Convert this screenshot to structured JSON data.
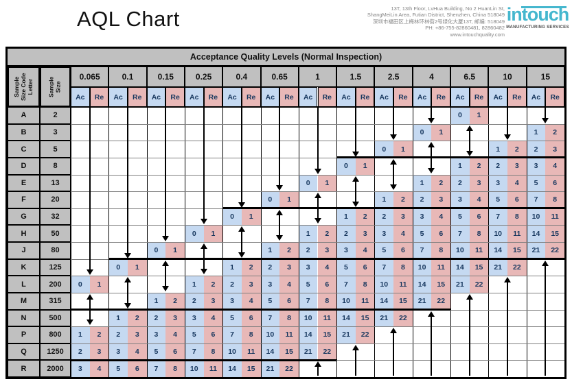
{
  "page": {
    "title": "AQL Chart",
    "company": {
      "address_lines": [
        "13T, 13th Floor, LvHua Building, No 2 HuanLin St,",
        "ShangMeiLin Area, Futian District, Shenzhen, China 518049",
        "深圳市福田区上梅林环林街2号绿化大厦13T, 邮编: 518049",
        "PH: +86-755-82860481, 82860482",
        "www.intouchquality.com"
      ],
      "logo_text": "intouch",
      "logo_tagline": "MANUFACTURING SERVICES",
      "logo_color": "#45b7ce"
    }
  },
  "table": {
    "header": "Acceptance Quality Levels  (Normal Inspection)",
    "row_header_labels": [
      "Sample Size Code Letter",
      "Sample Size"
    ],
    "aql_levels": [
      "0.065",
      "0.1",
      "0.15",
      "0.25",
      "0.4",
      "0.65",
      "1",
      "1.5",
      "2.5",
      "4",
      "6.5",
      "10",
      "15"
    ],
    "sub_headers": [
      "Ac",
      "Re"
    ],
    "colors": {
      "ac_bg": "#c5d9f1",
      "re_bg": "#e8b8b7",
      "header_bg": "#c0c0c0",
      "value_text": "#17375e"
    },
    "rows": [
      {
        "letter": "A",
        "size": "2",
        "cells": [
          null,
          null,
          null,
          null,
          null,
          null,
          null,
          null,
          null,
          null,
          [
            0,
            1
          ],
          null,
          null
        ]
      },
      {
        "letter": "B",
        "size": "3",
        "cells": [
          null,
          null,
          null,
          null,
          null,
          null,
          null,
          null,
          null,
          [
            0,
            1
          ],
          null,
          null,
          [
            1,
            2
          ]
        ]
      },
      {
        "letter": "C",
        "size": "5",
        "cells": [
          null,
          null,
          null,
          null,
          null,
          null,
          null,
          null,
          [
            0,
            1
          ],
          null,
          null,
          [
            1,
            2
          ],
          [
            2,
            3
          ]
        ]
      },
      {
        "letter": "D",
        "size": "8",
        "cells": [
          null,
          null,
          null,
          null,
          null,
          null,
          null,
          [
            0,
            1
          ],
          null,
          null,
          [
            1,
            2
          ],
          [
            2,
            3
          ],
          [
            3,
            4
          ]
        ]
      },
      {
        "letter": "E",
        "size": "13",
        "cells": [
          null,
          null,
          null,
          null,
          null,
          null,
          [
            0,
            1
          ],
          null,
          null,
          [
            1,
            2
          ],
          [
            2,
            3
          ],
          [
            3,
            4
          ],
          [
            5,
            6
          ]
        ]
      },
      {
        "letter": "F",
        "size": "20",
        "cells": [
          null,
          null,
          null,
          null,
          null,
          [
            0,
            1
          ],
          null,
          null,
          [
            1,
            2
          ],
          [
            2,
            3
          ],
          [
            3,
            4
          ],
          [
            5,
            6
          ],
          [
            7,
            8
          ]
        ]
      },
      {
        "letter": "G",
        "size": "32",
        "cells": [
          null,
          null,
          null,
          null,
          [
            0,
            1
          ],
          null,
          null,
          [
            1,
            2
          ],
          [
            2,
            3
          ],
          [
            3,
            4
          ],
          [
            5,
            6
          ],
          [
            7,
            8
          ],
          [
            10,
            11
          ]
        ]
      },
      {
        "letter": "H",
        "size": "50",
        "cells": [
          null,
          null,
          null,
          [
            0,
            1
          ],
          null,
          null,
          [
            1,
            2
          ],
          [
            2,
            3
          ],
          [
            3,
            4
          ],
          [
            5,
            6
          ],
          [
            7,
            8
          ],
          [
            10,
            11
          ],
          [
            14,
            15
          ]
        ]
      },
      {
        "letter": "J",
        "size": "80",
        "cells": [
          null,
          null,
          [
            0,
            1
          ],
          null,
          null,
          [
            1,
            2
          ],
          [
            2,
            3
          ],
          [
            3,
            4
          ],
          [
            5,
            6
          ],
          [
            7,
            8
          ],
          [
            10,
            11
          ],
          [
            14,
            15
          ],
          [
            21,
            22
          ]
        ]
      },
      {
        "letter": "K",
        "size": "125",
        "cells": [
          null,
          [
            0,
            1
          ],
          null,
          null,
          [
            1,
            2
          ],
          [
            2,
            3
          ],
          [
            3,
            4
          ],
          [
            5,
            6
          ],
          [
            7,
            8
          ],
          [
            10,
            11
          ],
          [
            14,
            15
          ],
          [
            21,
            22
          ],
          null
        ]
      },
      {
        "letter": "L",
        "size": "200",
        "cells": [
          [
            0,
            1
          ],
          null,
          null,
          [
            1,
            2
          ],
          [
            2,
            3
          ],
          [
            3,
            4
          ],
          [
            5,
            6
          ],
          [
            7,
            8
          ],
          [
            10,
            11
          ],
          [
            14,
            15
          ],
          [
            21,
            22
          ],
          null,
          null
        ]
      },
      {
        "letter": "M",
        "size": "315",
        "cells": [
          null,
          null,
          [
            1,
            2
          ],
          [
            2,
            3
          ],
          [
            3,
            4
          ],
          [
            5,
            6
          ],
          [
            7,
            8
          ],
          [
            10,
            11
          ],
          [
            14,
            15
          ],
          [
            21,
            22
          ],
          null,
          null,
          null
        ]
      },
      {
        "letter": "N",
        "size": "500",
        "cells": [
          null,
          [
            1,
            2
          ],
          [
            2,
            3
          ],
          [
            3,
            4
          ],
          [
            5,
            6
          ],
          [
            7,
            8
          ],
          [
            10,
            11
          ],
          [
            14,
            15
          ],
          [
            21,
            22
          ],
          null,
          null,
          null,
          null
        ]
      },
      {
        "letter": "P",
        "size": "800",
        "cells": [
          [
            1,
            2
          ],
          [
            2,
            3
          ],
          [
            3,
            4
          ],
          [
            5,
            6
          ],
          [
            7,
            8
          ],
          [
            10,
            11
          ],
          [
            14,
            15
          ],
          [
            21,
            22
          ],
          null,
          null,
          null,
          null,
          null
        ]
      },
      {
        "letter": "Q",
        "size": "1250",
        "cells": [
          [
            2,
            3
          ],
          [
            3,
            4
          ],
          [
            5,
            6
          ],
          [
            7,
            8
          ],
          [
            10,
            11
          ],
          [
            14,
            15
          ],
          [
            21,
            22
          ],
          null,
          null,
          null,
          null,
          null,
          null
        ]
      },
      {
        "letter": "R",
        "size": "2000",
        "cells": [
          [
            3,
            4
          ],
          [
            5,
            6
          ],
          [
            7,
            8
          ],
          [
            10,
            11
          ],
          [
            14,
            15
          ],
          [
            21,
            22
          ],
          null,
          null,
          null,
          null,
          null,
          null,
          null
        ]
      }
    ],
    "arrows": {
      "down": [
        {
          "aql": "0.065",
          "from": "A",
          "to": "K"
        },
        {
          "aql": "0.1",
          "from": "A",
          "to": "J"
        },
        {
          "aql": "0.15",
          "from": "A",
          "to": "H"
        },
        {
          "aql": "0.25",
          "from": "A",
          "to": "G"
        },
        {
          "aql": "0.4",
          "from": "A",
          "to": "F"
        },
        {
          "aql": "0.65",
          "from": "A",
          "to": "E"
        },
        {
          "aql": "1",
          "from": "A",
          "to": "D"
        },
        {
          "aql": "1.5",
          "from": "A",
          "to": "C"
        },
        {
          "aql": "2.5",
          "from": "A",
          "to": "B"
        },
        {
          "aql": "4",
          "from": "A",
          "to": "A"
        },
        {
          "aql": "10",
          "from": "A",
          "to": "B"
        },
        {
          "aql": "15",
          "from": "A",
          "to": "A"
        }
      ],
      "double": [
        {
          "aql": "6.5",
          "from": "B",
          "to": "C"
        },
        {
          "aql": "4",
          "from": "C",
          "to": "D"
        },
        {
          "aql": "2.5",
          "from": "D",
          "to": "E"
        },
        {
          "aql": "1.5",
          "from": "E",
          "to": "F"
        },
        {
          "aql": "1",
          "from": "F",
          "to": "G"
        },
        {
          "aql": "0.65",
          "from": "G",
          "to": "H"
        },
        {
          "aql": "0.4",
          "from": "H",
          "to": "J"
        },
        {
          "aql": "0.25",
          "from": "J",
          "to": "K"
        },
        {
          "aql": "0.15",
          "from": "K",
          "to": "L"
        },
        {
          "aql": "0.1",
          "from": "L",
          "to": "M"
        },
        {
          "aql": "0.065",
          "from": "M",
          "to": "N"
        }
      ],
      "up": [
        {
          "aql": "1",
          "from": "R"
        },
        {
          "aql": "1.5",
          "from": "Q"
        },
        {
          "aql": "2.5",
          "from": "P"
        },
        {
          "aql": "4",
          "from": "N"
        },
        {
          "aql": "6.5",
          "from": "M"
        },
        {
          "aql": "10",
          "from": "L"
        },
        {
          "aql": "15",
          "from": "K"
        }
      ]
    },
    "step_lines": [
      {
        "above": "D",
        "from_aql": "1.5",
        "to_aql": "15"
      },
      {
        "above": "G",
        "from_aql": "0.4",
        "to_aql": "15"
      },
      {
        "above": "K",
        "from_aql": "0.1",
        "to_aql": "15"
      },
      {
        "above": "N",
        "from_aql": "0.065",
        "to_aql": "4"
      },
      {
        "above": "R",
        "from_aql": "0.065",
        "to_aql": "1"
      }
    ]
  }
}
